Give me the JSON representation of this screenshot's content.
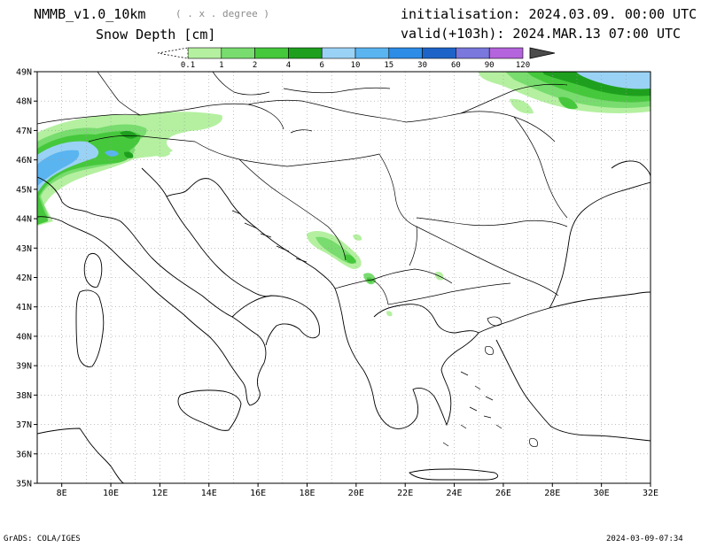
{
  "header": {
    "model": "NMMB_v1.0_10km",
    "units": "( . x . degree )",
    "field": "Snow Depth [cm]",
    "initialisation": "initialisation: 2024.03.09.  00:00 UTC",
    "valid": "valid(+103h): 2024.MAR.13 07:00 UTC"
  },
  "colorbar": {
    "levels": [
      "0.1",
      "1",
      "2",
      "4",
      "6",
      "10",
      "15",
      "30",
      "60",
      "90",
      "120"
    ],
    "colors": [
      "#b4f0a0",
      "#78dc6e",
      "#46c83c",
      "#1ea01e",
      "#9ad2f5",
      "#5ab4f0",
      "#2d8ce6",
      "#1e64c8",
      "#7a78dc",
      "#b464dc",
      "#4b4b4b"
    ]
  },
  "map": {
    "lat_labels": [
      "49N",
      "48N",
      "47N",
      "46N",
      "45N",
      "44N",
      "43N",
      "42N",
      "41N",
      "40N",
      "39N",
      "38N",
      "37N",
      "36N",
      "35N"
    ],
    "lon_labels": [
      "8E",
      "10E",
      "12E",
      "14E",
      "16E",
      "18E",
      "20E",
      "22E",
      "24E",
      "26E",
      "28E",
      "30E",
      "32E"
    ]
  },
  "footer": {
    "left": "GrADS: COLA/IGES",
    "right": "2024-03-09-07:34"
  }
}
